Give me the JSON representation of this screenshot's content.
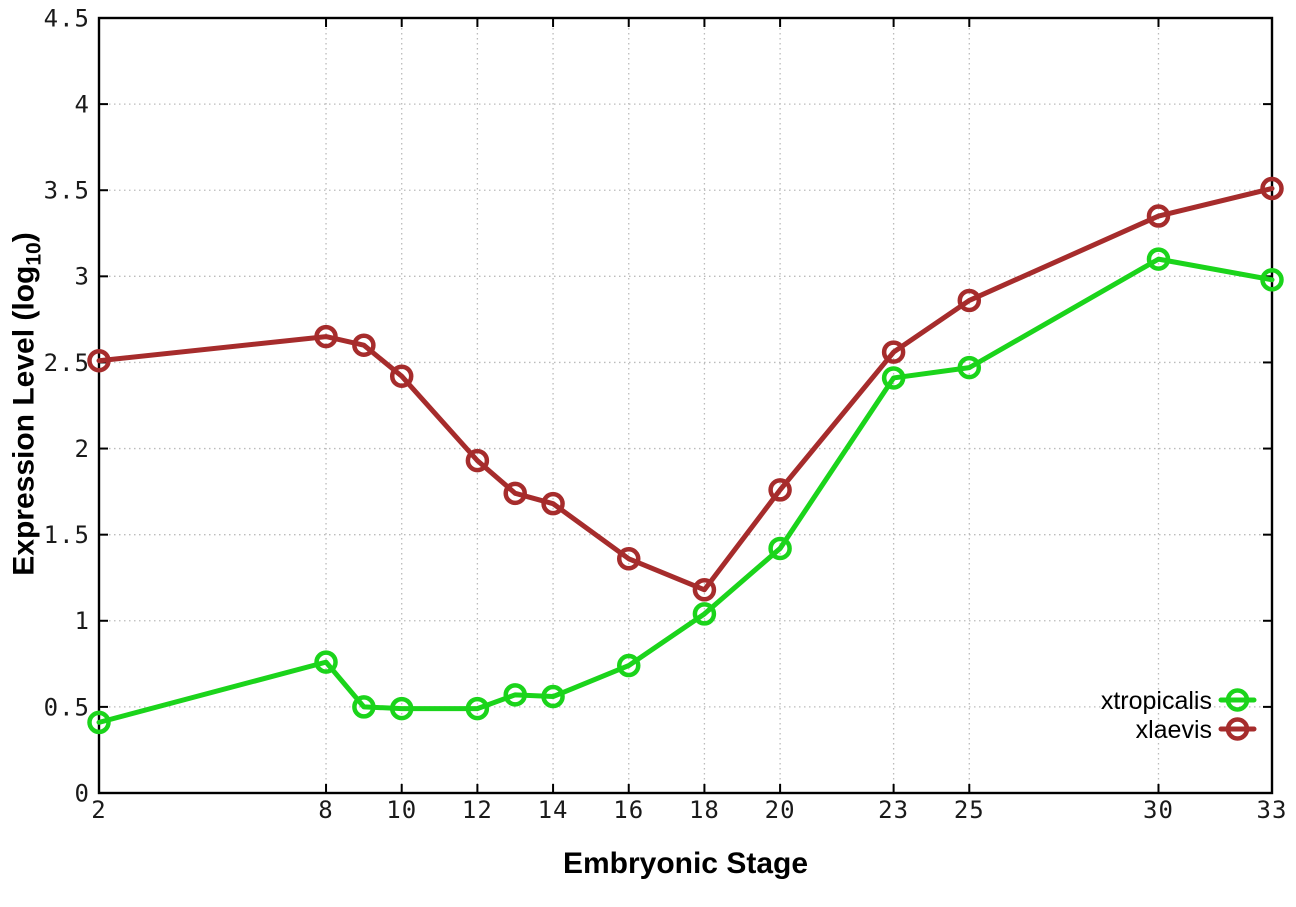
{
  "chart_data": {
    "type": "line",
    "title": "",
    "xlabel": "Embryonic Stage",
    "ylabel_prefix": "Expression Level (log",
    "ylabel_subscript": "10",
    "ylabel_suffix": ")",
    "xlim": [
      2,
      33
    ],
    "ylim": [
      0,
      4.5
    ],
    "grid": true,
    "legend_position": "inside-bottom-right",
    "x_ticks": {
      "values": [
        2,
        8,
        10,
        12,
        14,
        16,
        18,
        20,
        23,
        25,
        30,
        33
      ],
      "labels": [
        "2",
        "8",
        "10",
        "12",
        "14",
        "16",
        "18",
        "20",
        "23",
        "25",
        "30",
        "33"
      ]
    },
    "y_ticks": {
      "values": [
        0,
        0.5,
        1,
        1.5,
        2,
        2.5,
        3,
        3.5,
        4,
        4.5
      ],
      "labels": [
        "0",
        "0.5",
        "1",
        "1.5",
        "2",
        "2.5",
        "3",
        "3.5",
        "4",
        "4.5"
      ]
    },
    "x": [
      2,
      8,
      9,
      10,
      12,
      13,
      14,
      16,
      18,
      20,
      23,
      25,
      30,
      33
    ],
    "series": [
      {
        "name": "xtropicalis",
        "color": "#1bd41b",
        "marker": "open-circle",
        "values": [
          0.41,
          0.76,
          0.5,
          0.49,
          0.49,
          0.57,
          0.56,
          0.74,
          1.04,
          1.42,
          2.41,
          2.47,
          3.1,
          2.98
        ]
      },
      {
        "name": "xlaevis",
        "color": "#a62c2c",
        "marker": "open-circle",
        "values": [
          2.51,
          2.65,
          2.6,
          2.42,
          1.93,
          1.74,
          1.68,
          1.36,
          1.18,
          1.76,
          2.56,
          2.86,
          3.35,
          3.51
        ]
      }
    ],
    "colors": {
      "grid": "#bbbbbb",
      "axis": "#000000",
      "tick_label": "#1a1a1a",
      "legend_text": "#000000"
    }
  }
}
